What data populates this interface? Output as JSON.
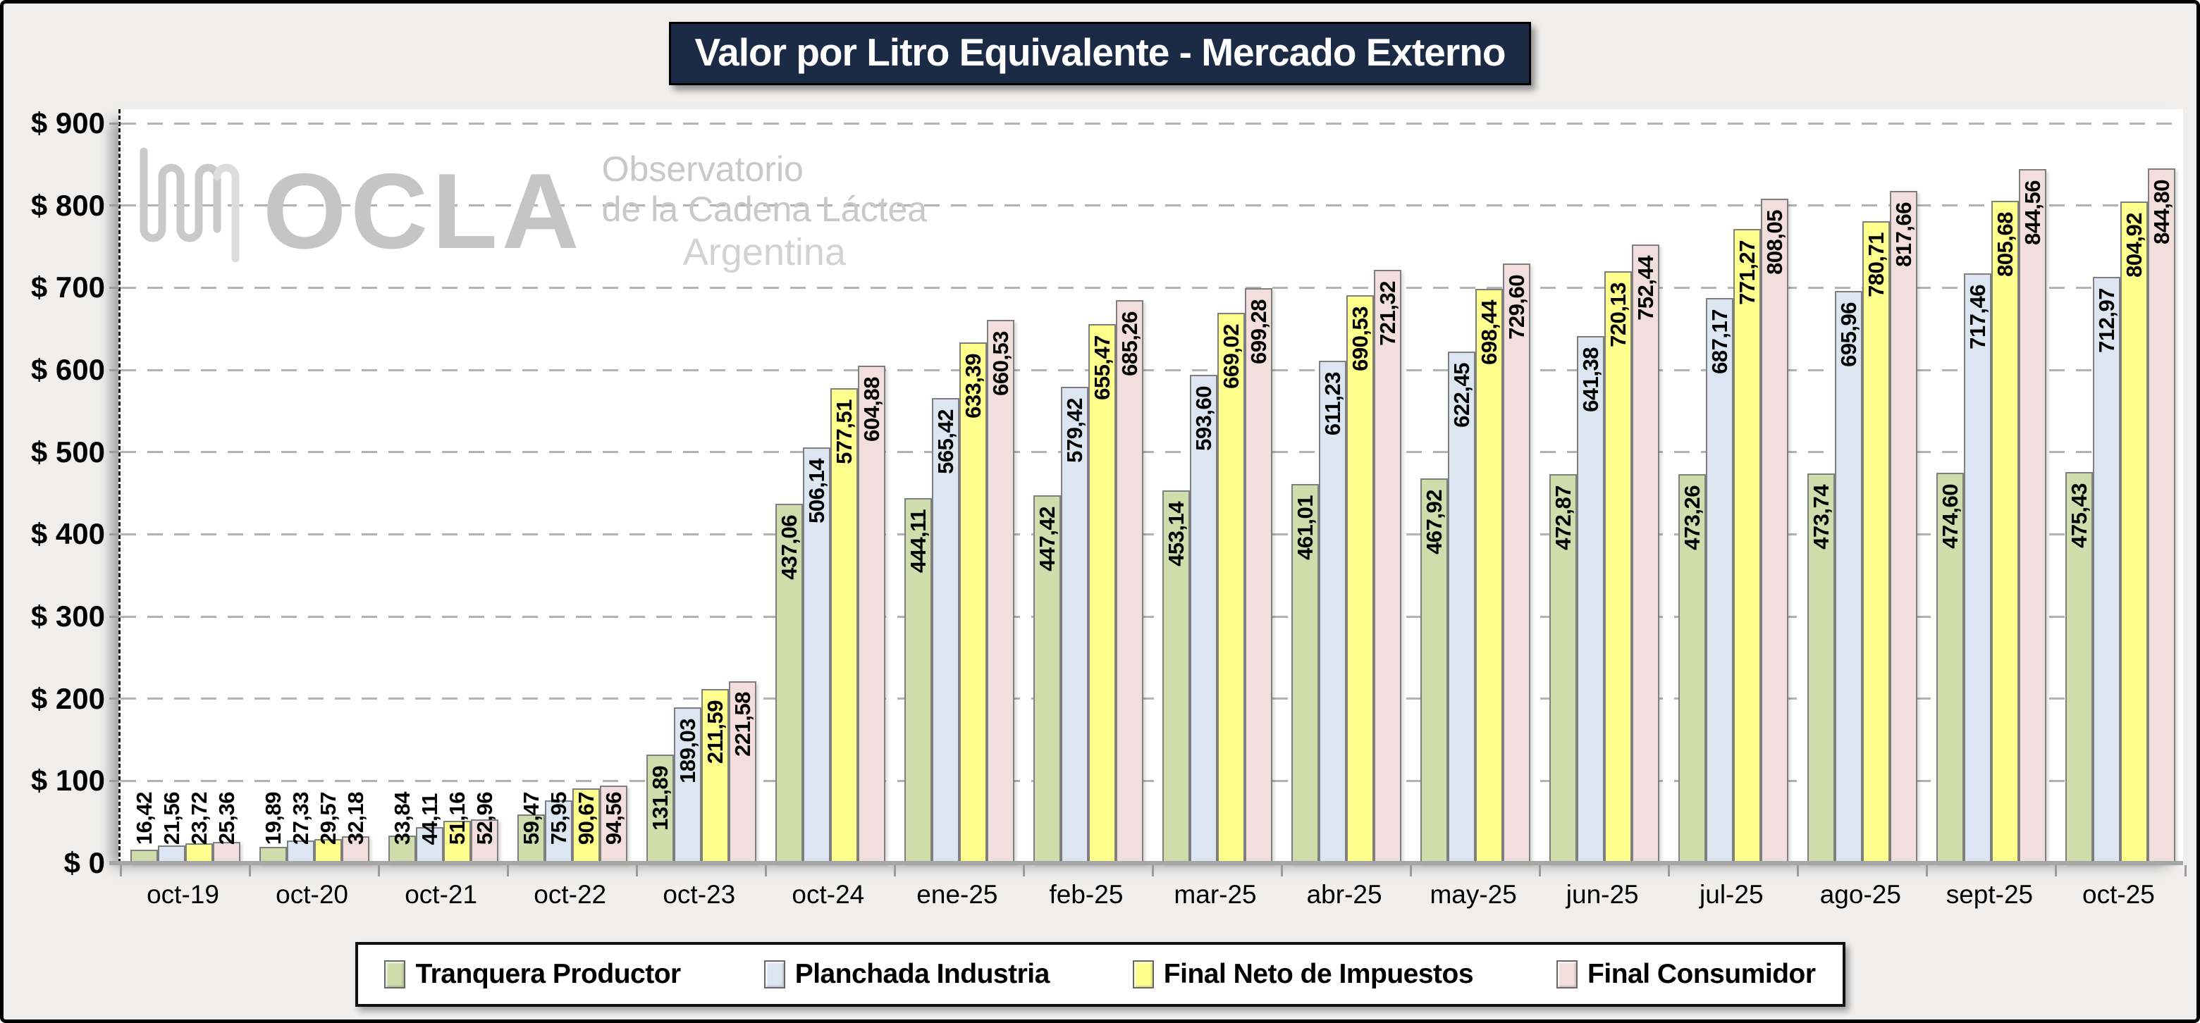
{
  "title": "Valor por Litro Equivalente - Mercado Externo",
  "watermark": {
    "brand": "OCLA",
    "tagline_line1": "Observatorio",
    "tagline_line2": "de la Cadena Láctea",
    "tagline_line3": "Argentina"
  },
  "y_axis": {
    "tick_labels": [
      "$ 900",
      "$ 800",
      "$ 700",
      "$ 600",
      "$ 500",
      "$ 400",
      "$ 300",
      "$ 200",
      "$ 100",
      "$ 0"
    ]
  },
  "chart_data": {
    "type": "bar",
    "title": "Valor por Litro Equivalente - Mercado Externo",
    "categories": [
      "oct-19",
      "oct-20",
      "oct-21",
      "oct-22",
      "oct-23",
      "oct-24",
      "ene-25",
      "feb-25",
      "mar-25",
      "abr-25",
      "may-25",
      "jun-25",
      "jul-25",
      "ago-25",
      "sept-25",
      "oct-25"
    ],
    "series": [
      {
        "name": "Tranquera Productor",
        "color": "#cfdcab",
        "border": "#7f7f7f",
        "values": [
          16.42,
          19.89,
          33.84,
          59.47,
          131.89,
          437.06,
          444.11,
          447.42,
          453.14,
          461.01,
          467.92,
          472.87,
          473.26,
          473.74,
          474.6,
          475.43
        ],
        "labels": [
          "16,42",
          "19,89",
          "33,84",
          "59,47",
          "131,89",
          "437,06",
          "444,11",
          "447,42",
          "453,14",
          "461,01",
          "467,92",
          "472,87",
          "473,26",
          "473,74",
          "474,60",
          "475,43"
        ]
      },
      {
        "name": "Planchada Industria",
        "color": "#dce6f2",
        "border": "#7f7f7f",
        "values": [
          21.56,
          27.33,
          44.11,
          75.95,
          189.03,
          506.14,
          565.42,
          579.42,
          593.6,
          611.23,
          622.45,
          641.38,
          687.17,
          695.96,
          717.46,
          712.97
        ],
        "labels": [
          "21,56",
          "27,33",
          "44,11",
          "75,95",
          "189,03",
          "506,14",
          "565,42",
          "579,42",
          "593,60",
          "611,23",
          "622,45",
          "641,38",
          "687,17",
          "695,96",
          "717,46",
          "712,97"
        ]
      },
      {
        "name": "Final Neto de Impuestos",
        "color": "#ffff8e",
        "border": "#7f7f7f",
        "values": [
          23.72,
          29.57,
          51.16,
          90.67,
          211.59,
          577.51,
          633.39,
          655.47,
          669.02,
          690.53,
          698.44,
          720.13,
          771.27,
          780.71,
          805.68,
          804.92
        ],
        "labels": [
          "23,72",
          "29,57",
          "51,16",
          "90,67",
          "211,59",
          "577,51",
          "633,39",
          "655,47",
          "669,02",
          "690,53",
          "698,44",
          "720,13",
          "771,27",
          "780,71",
          "805,68",
          "804,92"
        ]
      },
      {
        "name": "Final Consumidor",
        "color": "#f2dedd",
        "border": "#7f7f7f",
        "values": [
          25.36,
          32.18,
          52.96,
          94.56,
          221.58,
          604.88,
          660.53,
          685.26,
          699.28,
          721.32,
          729.6,
          752.44,
          808.05,
          817.66,
          844.56,
          844.8
        ],
        "labels": [
          "25,36",
          "32,18",
          "52,96",
          "94,56",
          "221,58",
          "604,88",
          "660,53",
          "685,26",
          "699,28",
          "721,32",
          "729,60",
          "752,44",
          "808,05",
          "817,66",
          "844,56",
          "844,80"
        ]
      }
    ],
    "ylim": [
      0,
      900
    ],
    "ytick_step": 100,
    "grid": "horizontal-dashed",
    "legend_position": "bottom",
    "value_label_format": "comma-decimal, rotated 90°"
  }
}
